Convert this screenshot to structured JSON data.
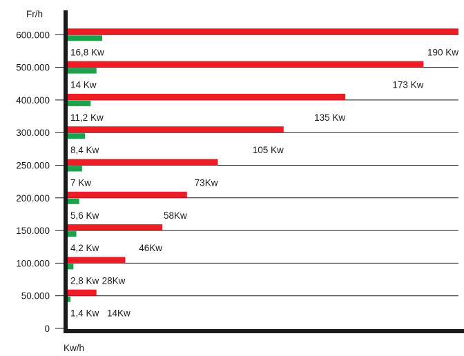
{
  "chart_data": {
    "type": "bar",
    "orientation": "horizontal",
    "ylabel": "Fr/h",
    "xlabel": "Kw/h",
    "categories": [
      "50.000",
      "100.000",
      "150.000",
      "200.000",
      "250.000",
      "300.000",
      "400.000",
      "500.000",
      "600.000"
    ],
    "y_tick_labels": [
      "0",
      "50.000",
      "100.000",
      "150.000",
      "200.000",
      "250.000",
      "300.000",
      "400.000",
      "500.000",
      "600.000"
    ],
    "xlim": [
      0,
      190
    ],
    "series": [
      {
        "color": "#ee1c25",
        "values": [
          14,
          28,
          46,
          58,
          73,
          105,
          135,
          173,
          190
        ],
        "labels": [
          "14Kw",
          "28Kw",
          "46Kw",
          "58Kw",
          "73Kw",
          "105 Kw",
          "135 Kw",
          "173 Kw",
          "190 Kw"
        ]
      },
      {
        "color": "#1aa34a",
        "values": [
          1.4,
          2.8,
          4.2,
          5.6,
          7,
          8.4,
          11.2,
          14,
          16.8
        ],
        "labels": [
          "1,4 Kw",
          "2,8 Kw",
          "4,2 Kw",
          "5,6 Kw",
          "7 Kw",
          "8,4 Kw",
          "11,2 Kw",
          "14 Kw",
          "16,8 Kw"
        ]
      }
    ],
    "grid": true,
    "legend": "none"
  }
}
